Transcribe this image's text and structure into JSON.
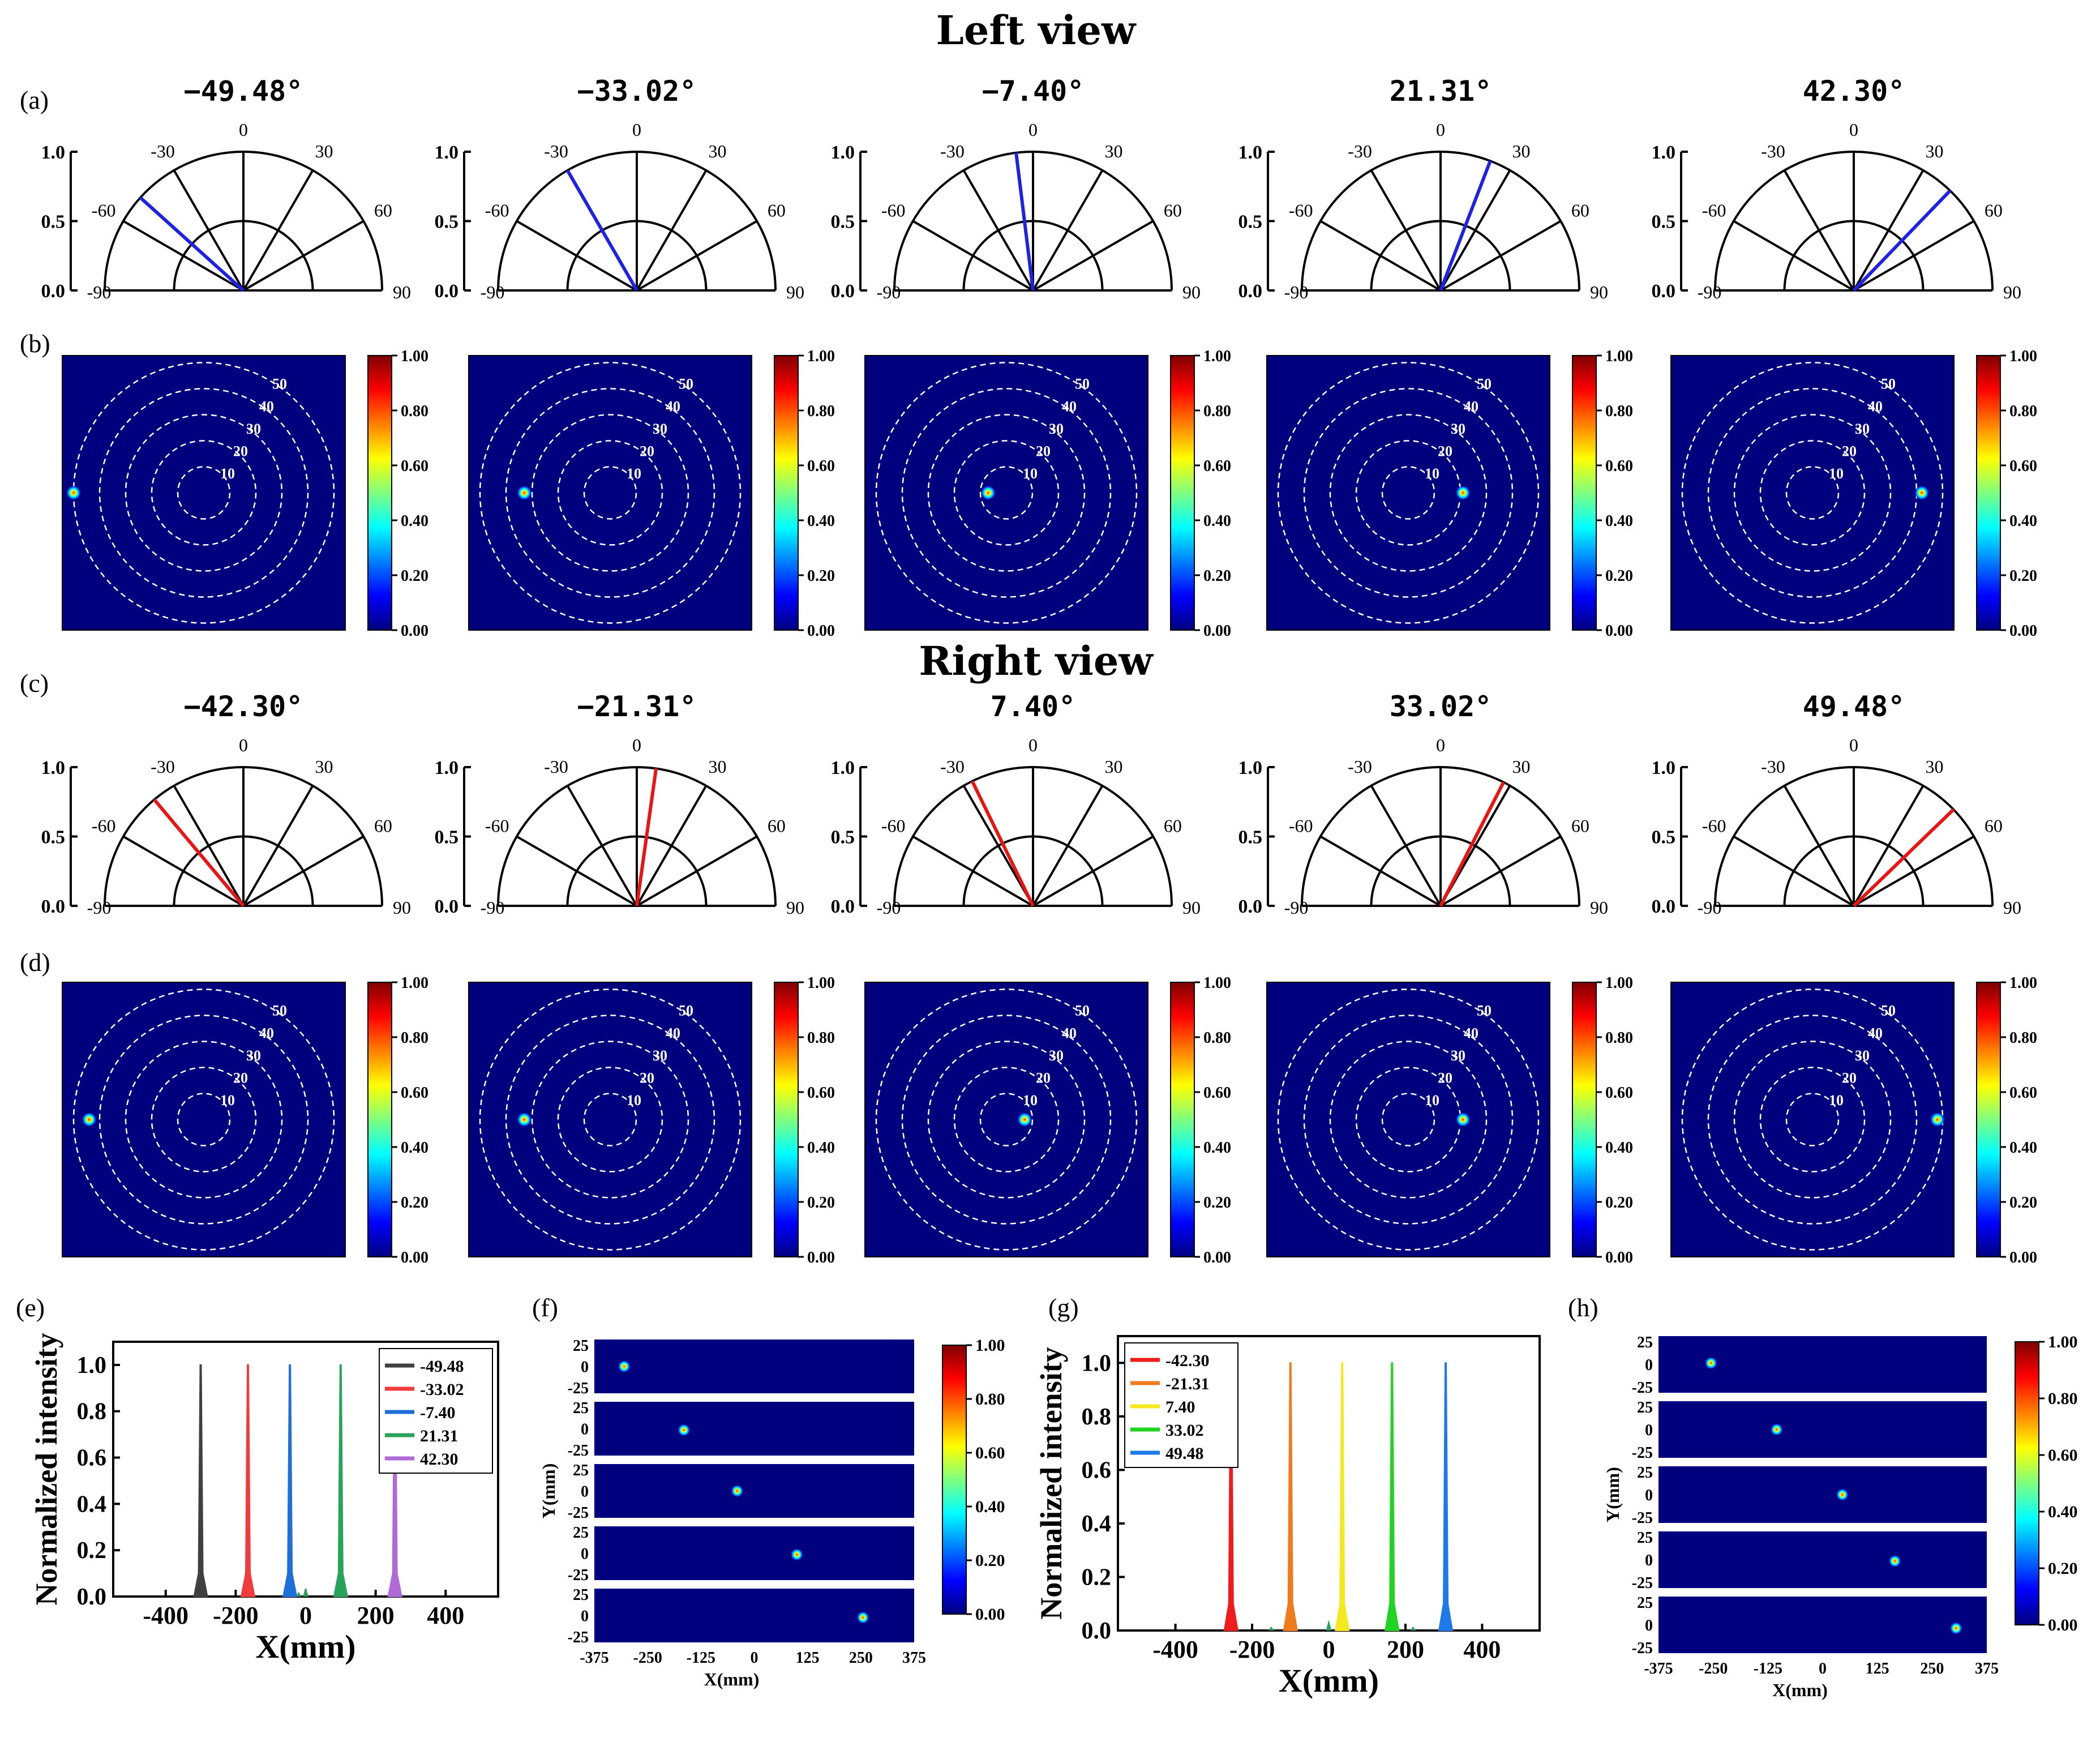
{
  "figure": {
    "top_title": "Left view",
    "mid_title": "Right view",
    "panel_labels": [
      "(a)",
      "(b)",
      "(c)",
      "(d)",
      "(e)",
      "(f)",
      "(g)",
      "(h)"
    ]
  },
  "polar_common": {
    "r_ticks": [
      "0.0",
      "0.5",
      "1.0"
    ],
    "angle_ticks": [
      "-90",
      "-60",
      "-30",
      "0",
      "30",
      "60",
      "90"
    ],
    "colors": {
      "left": "#1f22e0",
      "right": "#e81515"
    }
  },
  "heatmap_common": {
    "ring_labels": [
      "10",
      "20",
      "30",
      "40",
      "50"
    ],
    "colorbar_ticks": [
      "0.00",
      "0.20",
      "0.40",
      "0.60",
      "0.80",
      "1.00"
    ]
  },
  "left_view": {
    "angles": [
      -49.48,
      -33.02,
      -7.4,
      21.31,
      42.3
    ],
    "titles": [
      "−49.48°",
      "−33.02°",
      "−7.40°",
      "21.31°",
      "42.30°"
    ],
    "beam_angles": [
      -48,
      -30,
      -7,
      21,
      44
    ],
    "spot_angles": [
      50,
      33,
      7,
      21,
      42
    ]
  },
  "right_view": {
    "angles": [
      -42.3,
      -21.31,
      7.4,
      33.02,
      49.48
    ],
    "titles": [
      "−42.30°",
      "−21.31°",
      "7.40°",
      "33.02°",
      "49.48°"
    ],
    "beam_angles": [
      -40,
      8,
      -26,
      27,
      46
    ],
    "spot_angles": [
      44,
      33,
      7,
      21,
      48
    ]
  },
  "chart_data": [
    {
      "id": "e",
      "type": "line",
      "xlabel": "X(mm)",
      "ylabel": "Normalized intensity",
      "xlim": [
        -550,
        550
      ],
      "ylim": [
        0,
        1.1
      ],
      "x_ticks": [
        -400,
        -200,
        0,
        200,
        400
      ],
      "y_ticks": [
        0.0,
        0.2,
        0.4,
        0.6,
        0.8,
        1.0
      ],
      "series": [
        {
          "name": "-49.48",
          "peak_x": -300,
          "color": "#404040"
        },
        {
          "name": "-33.02",
          "peak_x": -165,
          "color": "#f03c3c"
        },
        {
          "name": "-7.40",
          "peak_x": -45,
          "color": "#1e6fd8"
        },
        {
          "name": "21.31",
          "peak_x": 100,
          "color": "#2aa35a"
        },
        {
          "name": "42.30",
          "peak_x": 255,
          "color": "#b06ad8"
        }
      ],
      "minor_peaks": [
        [
          0,
          0.04
        ],
        [
          -20,
          0.02
        ],
        [
          110,
          0.02
        ]
      ]
    },
    {
      "id": "g",
      "type": "line",
      "xlabel": "X(mm)",
      "ylabel": "Normalized intensity",
      "xlim": [
        -550,
        550
      ],
      "ylim": [
        0,
        1.1
      ],
      "x_ticks": [
        -400,
        -200,
        0,
        200,
        400
      ],
      "y_ticks": [
        0.0,
        0.2,
        0.4,
        0.6,
        0.8,
        1.0
      ],
      "series": [
        {
          "name": "-42.30",
          "peak_x": -255,
          "color": "#ee1c1c"
        },
        {
          "name": "-21.31",
          "peak_x": -100,
          "color": "#f07a1e"
        },
        {
          "name": "7.40",
          "peak_x": 35,
          "color": "#f4e81e"
        },
        {
          "name": "33.02",
          "peak_x": 165,
          "color": "#22d322"
        },
        {
          "name": "49.48",
          "peak_x": 305,
          "color": "#1e7ae8"
        }
      ],
      "minor_peaks": [
        [
          0,
          0.04
        ],
        [
          -150,
          0.015
        ],
        [
          220,
          0.015
        ]
      ]
    },
    {
      "id": "f",
      "type": "heatmap",
      "xlabel": "X(mm)",
      "ylabel": "Y(mm)",
      "x_ticks": [
        "-375",
        "-250",
        "-125",
        "0",
        "125",
        "250",
        "375"
      ],
      "y_ticks": [
        "25",
        "0",
        "-25"
      ],
      "xlim": [
        -375,
        375
      ],
      "spots": [
        [
          -305,
          0
        ],
        [
          -165,
          -2
        ],
        [
          -40,
          0
        ],
        [
          100,
          -2
        ],
        [
          255,
          -3
        ]
      ],
      "colorbar_ticks": [
        "0.00",
        "0.20",
        "0.40",
        "0.60",
        "0.80",
        "1.00"
      ]
    },
    {
      "id": "h",
      "type": "heatmap",
      "xlabel": "X(mm)",
      "ylabel": "Y(mm)",
      "x_ticks": [
        "-375",
        "-250",
        "-125",
        "0",
        "125",
        "250",
        "375"
      ],
      "y_ticks": [
        "25",
        "0",
        "-25"
      ],
      "xlim": [
        -375,
        375
      ],
      "spots": [
        [
          -255,
          2
        ],
        [
          -105,
          0
        ],
        [
          45,
          0
        ],
        [
          165,
          -2
        ],
        [
          305,
          -5
        ]
      ],
      "colorbar_ticks": [
        "0.00",
        "0.20",
        "0.40",
        "0.60",
        "0.80",
        "1.00"
      ]
    }
  ]
}
